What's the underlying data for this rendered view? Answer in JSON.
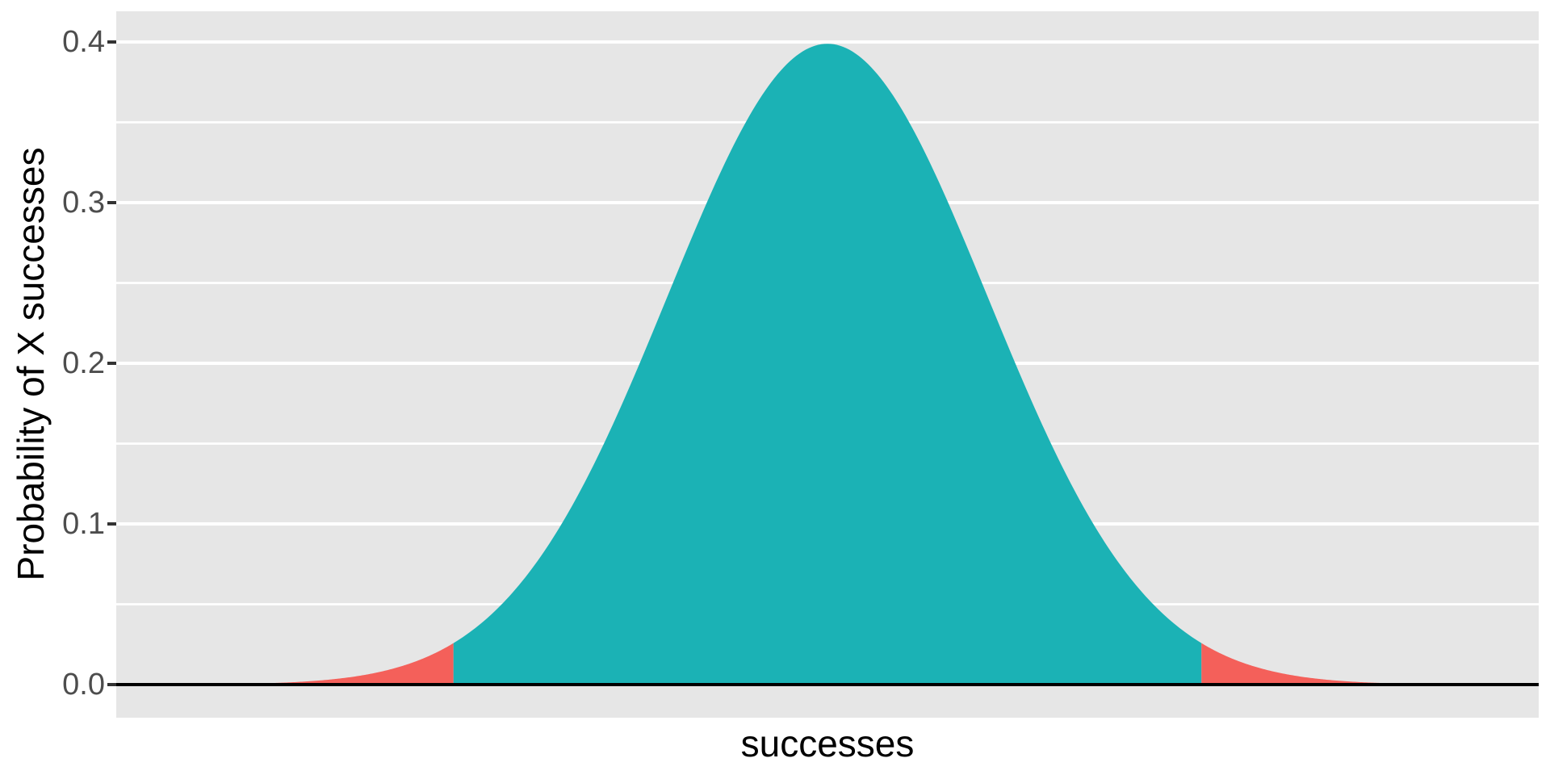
{
  "chart_data": {
    "type": "area",
    "subtype": "normal-distribution-with-shaded-tails",
    "title": "",
    "xlabel": "successes",
    "ylabel": "Probability of X successes",
    "x_axis": {
      "label": "successes",
      "tick_labels": [],
      "z_range": [
        -4.45,
        4.45
      ]
    },
    "y_axis": {
      "label": "Probability of X successes",
      "tick_labels": [
        "0.0",
        "0.1",
        "0.2",
        "0.3",
        "0.4"
      ],
      "tick_values": [
        0,
        0.1,
        0.2,
        0.3,
        0.4
      ],
      "minor_tick_values": [
        0.05,
        0.15,
        0.25,
        0.35
      ],
      "range": [
        -0.0206,
        0.4191
      ]
    },
    "distribution": {
      "kind": "normal",
      "mean_z": 0,
      "sd_z": 1,
      "peak_density": 0.3989,
      "lower_cutoff_z": -2.34,
      "upper_cutoff_z": 2.34
    },
    "regions": [
      {
        "name": "lower-tail",
        "z_from": -4.45,
        "z_to": -2.34,
        "color": "#F4605A"
      },
      {
        "name": "center",
        "z_from": -2.34,
        "z_to": 2.34,
        "color": "#1BB2B5"
      },
      {
        "name": "upper-tail",
        "z_from": 2.34,
        "z_to": 4.45,
        "color": "#F4605A"
      }
    ],
    "baseline": {
      "value": 0,
      "color": "#000000"
    },
    "legend": null,
    "grid": {
      "on": true,
      "major_color": "#FFFFFF",
      "minor_color": "#FFFFFF"
    }
  },
  "style": {
    "panel_background": "#E6E6E6",
    "tick_label_color": "#4D4D4D",
    "tick_mark_color": "#333333",
    "axis_title_color": "#000000"
  }
}
